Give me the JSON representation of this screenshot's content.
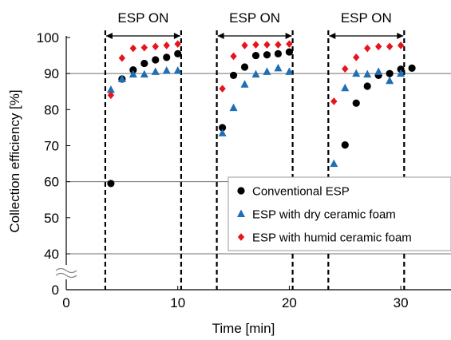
{
  "chart_data": {
    "type": "scatter",
    "title": "",
    "xlabel": "Time [min]",
    "ylabel": "Collection efficiency [%]",
    "xlim": [
      0,
      34.5
    ],
    "ylim_lower_segment": [
      0,
      40
    ],
    "ylim_upper_segment": [
      40,
      100
    ],
    "axis_break": "between 0 and 40 on the y axis",
    "x_ticks": [
      0,
      10,
      20,
      30
    ],
    "x_tick_labels": [
      "0",
      "10",
      "20",
      "30"
    ],
    "y_ticks": [
      0,
      40,
      50,
      60,
      70,
      80,
      90,
      100
    ],
    "y_tick_labels": [
      "0",
      "40",
      "50",
      "60",
      "70",
      "80",
      "90",
      "100"
    ],
    "gridlines_y": [
      40,
      60,
      90
    ],
    "esp_periods": [
      {
        "label": "ESP ON",
        "start": 3.5,
        "end": 10.3
      },
      {
        "label": "ESP ON",
        "start": 13.5,
        "end": 20.3
      },
      {
        "label": "ESP ON",
        "start": 23.5,
        "end": 30.3
      }
    ],
    "legend_position": "lower-right",
    "series": [
      {
        "name": "Conventional ESP",
        "marker": "circle",
        "color": "#000000",
        "points": [
          [
            4,
            59.5
          ],
          [
            5,
            88.5
          ],
          [
            6,
            91
          ],
          [
            7,
            92.8
          ],
          [
            8,
            93.8
          ],
          [
            9,
            94.5
          ],
          [
            10,
            95.5
          ],
          [
            14,
            75
          ],
          [
            15,
            89.5
          ],
          [
            16,
            91.8
          ],
          [
            17,
            95
          ],
          [
            18,
            95.2
          ],
          [
            19,
            95.5
          ],
          [
            20,
            96
          ],
          [
            25,
            70.2
          ],
          [
            26,
            81.8
          ],
          [
            27,
            86.5
          ],
          [
            28,
            89.5
          ],
          [
            29,
            90
          ],
          [
            30,
            91.2
          ],
          [
            31,
            91.5
          ]
        ]
      },
      {
        "name": "ESP with dry ceramic foam",
        "marker": "triangle",
        "color": "#1f6fb5",
        "points": [
          [
            4,
            85.5
          ],
          [
            5,
            88.5
          ],
          [
            6,
            89.8
          ],
          [
            7,
            89.8
          ],
          [
            8,
            90.5
          ],
          [
            9,
            90.8
          ],
          [
            10,
            90.8
          ],
          [
            14,
            73.5
          ],
          [
            15,
            80.5
          ],
          [
            16,
            87
          ],
          [
            17,
            89.8
          ],
          [
            18,
            90.5
          ],
          [
            19,
            91.5
          ],
          [
            20,
            90.5
          ],
          [
            24,
            65
          ],
          [
            25,
            86
          ],
          [
            26,
            90
          ],
          [
            27,
            89.8
          ],
          [
            28,
            90.5
          ],
          [
            29,
            88
          ],
          [
            30,
            90
          ]
        ]
      },
      {
        "name": "ESP with humid ceramic foam",
        "marker": "diamond",
        "color": "#e8141b",
        "points": [
          [
            4,
            84
          ],
          [
            5,
            94.3
          ],
          [
            6,
            97
          ],
          [
            7,
            97.2
          ],
          [
            8,
            97.5
          ],
          [
            9,
            97.8
          ],
          [
            10,
            98.2
          ],
          [
            14,
            85.8
          ],
          [
            15,
            94.8
          ],
          [
            16,
            97.8
          ],
          [
            17,
            98
          ],
          [
            18,
            98
          ],
          [
            19,
            98
          ],
          [
            20,
            98.2
          ],
          [
            24,
            82.3
          ],
          [
            25,
            91.3
          ],
          [
            26,
            94.5
          ],
          [
            27,
            97
          ],
          [
            28,
            97.5
          ],
          [
            29,
            97.5
          ],
          [
            30,
            97.8
          ]
        ]
      }
    ]
  }
}
